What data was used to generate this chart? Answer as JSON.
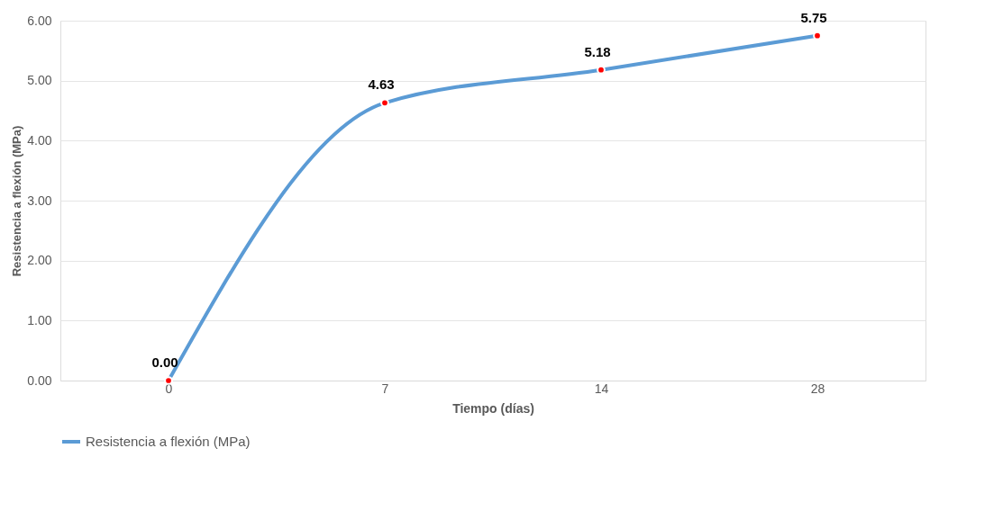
{
  "chart_data": {
    "type": "line",
    "xlabel": "Tiempo (días)",
    "ylabel": "Resistencia a flexión (MPa)",
    "categories": [
      "0",
      "7",
      "14",
      "28"
    ],
    "series": [
      {
        "name": "Resistencia a flexión (MPa)",
        "color": "#5b9bd5",
        "colors": [
          "#ff0000",
          "#ff0000",
          "#ff0000",
          "#ff0000"
        ],
        "values": [
          0.0,
          4.63,
          5.18,
          5.75
        ]
      }
    ],
    "value_labels": [
      "0.00",
      "4.63",
      "5.18",
      "5.75"
    ],
    "ylim": [
      0,
      6
    ],
    "yticks": [
      {
        "value": 0,
        "label": "0.00"
      },
      {
        "value": 1,
        "label": "1.00"
      },
      {
        "value": 2,
        "label": "2.00"
      },
      {
        "value": 3,
        "label": "3.00"
      },
      {
        "value": 4,
        "label": "4.00"
      },
      {
        "value": 5,
        "label": "5.00"
      },
      {
        "value": 6,
        "label": "6.00"
      }
    ],
    "grid": "y",
    "legend": "bottom",
    "marker": "circle",
    "line_style": "solid"
  }
}
